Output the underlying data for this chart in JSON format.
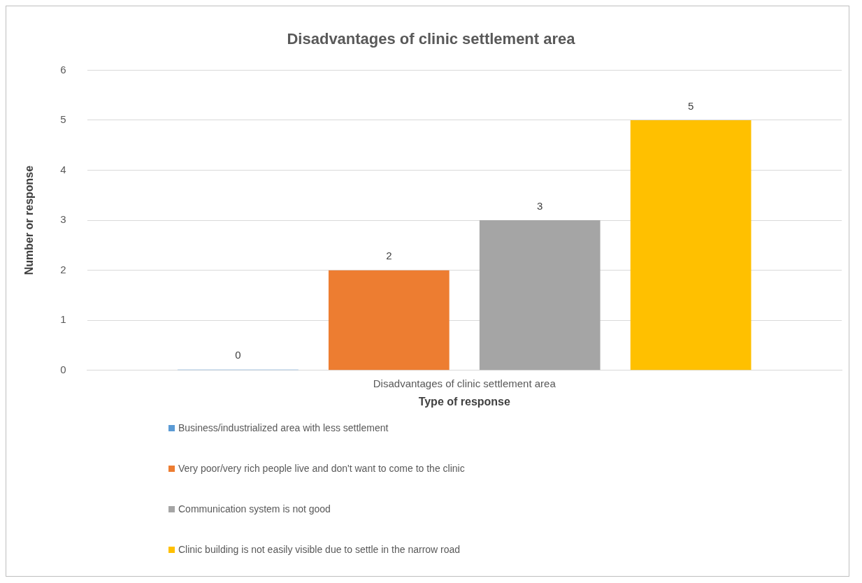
{
  "chart_data": {
    "type": "bar",
    "title": "Disadvantages of clinic settlement area",
    "xlabel": "Type of response",
    "ylabel": "Number or response",
    "categories": [
      "Disadvantages of clinic settlement area"
    ],
    "series": [
      {
        "name": "Business/industrialized area with less settlement",
        "color": "#5b9bd5",
        "values": [
          0
        ]
      },
      {
        "name": "Very poor/very rich people live and don't want to come to the clinic",
        "color": "#ed7d31",
        "values": [
          2
        ]
      },
      {
        "name": "Communication system is not good",
        "color": "#a5a5a5",
        "values": [
          3
        ]
      },
      {
        "name": "Clinic building is not easily visible due to settle in the narrow road",
        "color": "#ffc000",
        "values": [
          5
        ]
      }
    ],
    "ylim": [
      0,
      6
    ],
    "yticks": [
      0,
      1,
      2,
      3,
      4,
      5,
      6
    ],
    "grid": "y",
    "legend": "bottom",
    "data_labels": true
  }
}
